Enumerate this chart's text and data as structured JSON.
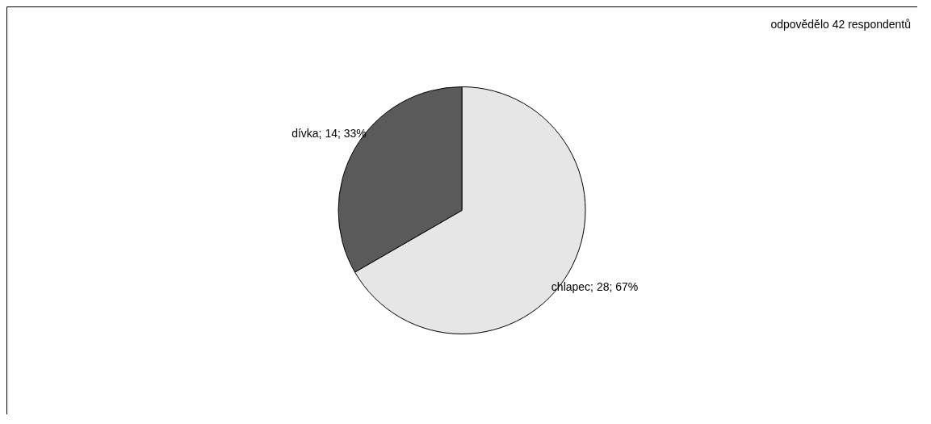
{
  "chart_data": {
    "type": "pie",
    "categories": [
      "chlapec",
      "dívka"
    ],
    "values": [
      28,
      14
    ],
    "colors": [
      "#e6e6e6",
      "#5a5a5a"
    ],
    "value_labels": [
      "28; 67%",
      "14; 33%"
    ],
    "annotations": [
      "odpovědělo 42 respondentů"
    ]
  }
}
